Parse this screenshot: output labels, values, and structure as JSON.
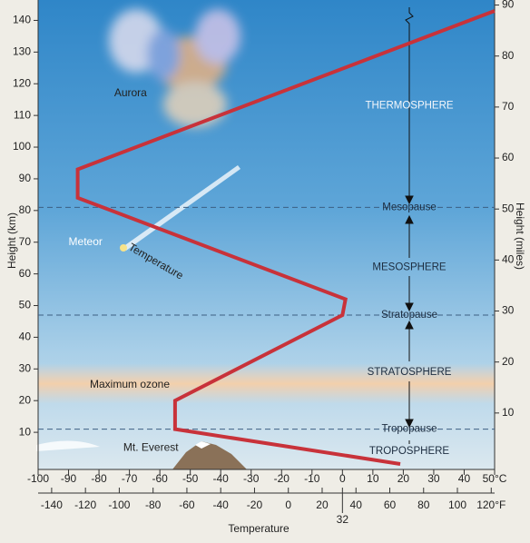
{
  "chart_data": {
    "type": "line",
    "ylabel": "Height (km)",
    "y2label": "Height (miles)",
    "xlabel": "Temperature",
    "ylim": [
      0,
      145
    ],
    "yticks": [
      10,
      20,
      30,
      40,
      50,
      60,
      70,
      80,
      90,
      100,
      110,
      120,
      130,
      140
    ],
    "y2lim": [
      0,
      90.1
    ],
    "y2ticks": [
      10,
      20,
      30,
      40,
      50,
      60,
      70,
      80,
      90
    ],
    "xlim": [
      -100,
      50
    ],
    "xticks": [
      -100,
      -90,
      -80,
      -70,
      -60,
      -50,
      -40,
      -30,
      -20,
      -10,
      0,
      10,
      20,
      30,
      40,
      {
        "value": 50,
        "label": "50°C"
      }
    ],
    "x2lim": [
      -148,
      122
    ],
    "x2ticks": [
      -140,
      -120,
      -100,
      -80,
      -60,
      -40,
      -20,
      0,
      20,
      32,
      40,
      60,
      80,
      100,
      {
        "value": 120,
        "label": "120°F"
      }
    ],
    "series": [
      {
        "name": "Temperature",
        "color": "#c8323a",
        "x": [
          19,
          -55,
          -55,
          0,
          1,
          -87,
          -87,
          50
        ],
        "values": [
          0,
          11,
          20,
          47,
          52,
          84,
          93,
          143
        ]
      }
    ],
    "boundaries": [
      {
        "label": "Mesopause",
        "height": 81
      },
      {
        "label": "Stratopause",
        "height": 47
      },
      {
        "label": "Tropopause",
        "height": 11
      }
    ],
    "layers": [
      {
        "label": "THERMOSPHERE",
        "height": 113
      },
      {
        "label": "MESOSPHERE",
        "height": 62
      },
      {
        "label": "STRATOSPHERE",
        "height": 29
      },
      {
        "label": "TROPOSPHERE",
        "height": 4
      }
    ],
    "annotations": [
      {
        "label": "Aurora",
        "x": -75,
        "height": 117
      },
      {
        "label": "Meteor",
        "x": -90,
        "height": 70
      },
      {
        "label": "Maximum ozone",
        "x": -83,
        "height": 25
      },
      {
        "label": "Mt. Everest",
        "x": -72,
        "height": 5
      }
    ]
  }
}
